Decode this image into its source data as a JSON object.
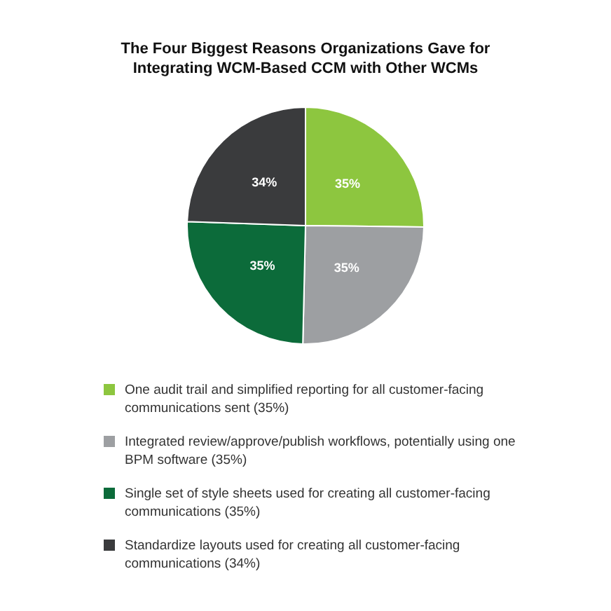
{
  "chart_data": {
    "type": "pie",
    "title": "The Four Biggest Reasons Organizations Gave for Integrating WCM-Based CCM with Other WCMs",
    "categories": [
      "One audit trail and simplified reporting for all customer-facing communications sent (35%)",
      "Integrated review/approve/publish workflows, potentially using one BPM software (35%)",
      "Single set of style sheets used for creating all customer-facing communications (35%)",
      "Standardize layouts used for creating all customer-facing communications (34%)"
    ],
    "values": [
      35,
      35,
      35,
      34
    ],
    "colors": [
      "#8dc63f",
      "#9d9fa2",
      "#0c6b3a",
      "#3a3b3d"
    ],
    "value_labels": [
      "35%",
      "35%",
      "35%",
      "34%"
    ],
    "legend": "bottom"
  }
}
